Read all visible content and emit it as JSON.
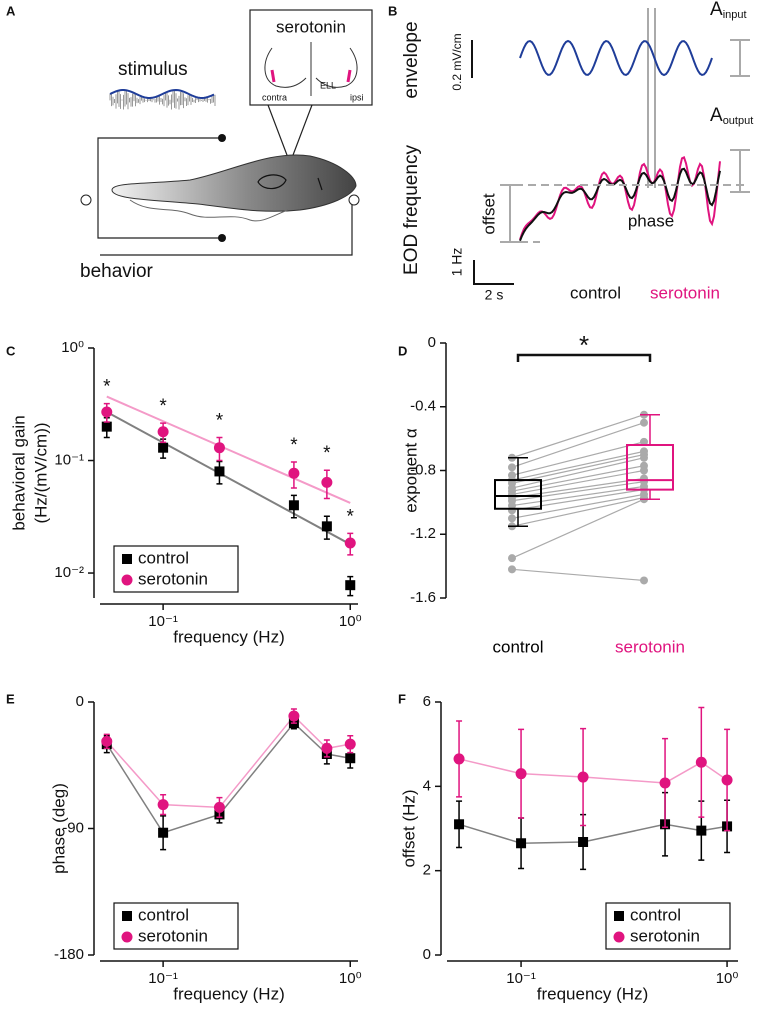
{
  "diagram_a": {
    "label": "A",
    "inset_title": "serotonin",
    "inset_labels": [
      "contra",
      "ELL",
      "ipsi"
    ],
    "stimulus": "stimulus",
    "behavior": "behavior"
  },
  "diagram_b": {
    "label": "B",
    "envelope": "envelope",
    "scale_envelope": "0.2 mV/cm",
    "a_input": {
      "base": "A",
      "sub": "input"
    },
    "a_output": {
      "base": "A",
      "sub": "output"
    },
    "eod": "EOD frequency",
    "offset": "offset",
    "phase": "phase",
    "scale_freq": "1 Hz",
    "scale_time": "2 s",
    "legend": [
      "control",
      "serotonin"
    ]
  },
  "chart_data": [
    {
      "panel": "C",
      "type": "scatter",
      "xscale": "log",
      "yscale": "log",
      "xlabel": "frequency (Hz)",
      "ylabel": [
        "behavioral gain",
        "(Hz/(mV/cm))"
      ],
      "xlim": [
        0.046,
        1.1
      ],
      "ylim": [
        0.006,
        1
      ],
      "xticks": [
        {
          "value": 0.1,
          "label": "10⁻¹"
        },
        {
          "value": 1,
          "label": "10⁰"
        }
      ],
      "yticks": [
        {
          "value": 0.01,
          "label": "10⁻²"
        },
        {
          "value": 0.1,
          "label": "10⁻¹"
        },
        {
          "value": 1,
          "label": "10⁰"
        }
      ],
      "x": [
        0.05,
        0.1,
        0.2,
        0.5,
        0.75,
        1
      ],
      "series": [
        {
          "name": "control",
          "color": "#000000",
          "marker": "square",
          "values": [
            0.2,
            0.13,
            0.08,
            0.04,
            0.026,
            0.0078
          ],
          "errors": [
            0.04,
            0.025,
            0.018,
            0.009,
            0.006,
            0.0015
          ]
        },
        {
          "name": "serotonin",
          "color": "#e0147f",
          "marker": "circle",
          "values": [
            0.27,
            0.18,
            0.13,
            0.077,
            0.064,
            0.0185
          ],
          "errors": [
            0.05,
            0.035,
            0.03,
            0.02,
            0.018,
            0.004
          ]
        }
      ],
      "fits": [
        {
          "color": "#808080",
          "x": [
            0.05,
            1
          ],
          "values": [
            0.27,
            0.018
          ]
        },
        {
          "color": "#f49ac8",
          "x": [
            0.05,
            1
          ],
          "values": [
            0.37,
            0.042
          ]
        }
      ],
      "annotations": [
        "*",
        "*",
        "*",
        "*",
        "*",
        "*"
      ],
      "legend": "lower left"
    },
    {
      "panel": "D",
      "type": "box",
      "ylabel": "exponent α",
      "ylim": [
        -1.6,
        0
      ],
      "yticks": [
        -1.6,
        -1.2,
        -0.8,
        -0.4,
        0
      ],
      "significance": "*",
      "boxes": [
        {
          "label": "control",
          "color": "#000000",
          "whislo": -1.15,
          "q1": -1.04,
          "median": -0.96,
          "q3": -0.86,
          "whishi": -0.72,
          "points": [
            -0.72,
            -0.78,
            -0.83,
            -0.86,
            -0.88,
            -0.91,
            -0.93,
            -0.95,
            -0.97,
            -0.99,
            -1.02,
            -1.05,
            -1.1,
            -1.15,
            -1.35,
            -1.42
          ]
        },
        {
          "label": "serotonin",
          "color": "#e0147f",
          "whislo": -0.98,
          "q1": -0.92,
          "median": -0.86,
          "q3": -0.64,
          "whishi": -0.45,
          "points": [
            -0.45,
            -0.5,
            -0.62,
            -0.68,
            -0.7,
            -0.72,
            -0.77,
            -0.8,
            -0.85,
            -0.87,
            -0.9,
            -0.92,
            -0.95,
            -0.97,
            -0.98,
            -1.49
          ]
        }
      ]
    },
    {
      "panel": "E",
      "type": "scatter",
      "xscale": "log",
      "yscale": "linear",
      "xlabel": "frequency (Hz)",
      "ylabel": [
        "phase (deg)"
      ],
      "xlim": [
        0.046,
        1.1
      ],
      "ylim": [
        -180,
        0
      ],
      "xticks": [
        {
          "value": 0.1,
          "label": "10⁻¹"
        },
        {
          "value": 1,
          "label": "10⁰"
        }
      ],
      "yticks": [
        -180,
        -90,
        0
      ],
      "x": [
        0.05,
        0.1,
        0.2,
        0.5,
        0.75,
        1
      ],
      "series": [
        {
          "name": "control",
          "color": "#000000",
          "line_color": "#808080",
          "marker": "square",
          "values": [
            -30,
            -93,
            -80,
            -15,
            -37,
            -40
          ],
          "errors": [
            6,
            12,
            6,
            4,
            7,
            7
          ]
        },
        {
          "name": "serotonin",
          "color": "#e0147f",
          "line_color": "#f49ac8",
          "marker": "circle",
          "values": [
            -28,
            -73,
            -75,
            -10,
            -33,
            -30
          ],
          "errors": [
            5,
            7,
            7,
            5,
            6,
            6
          ]
        }
      ],
      "legend": "lower left"
    },
    {
      "panel": "F",
      "type": "scatter",
      "xscale": "log",
      "yscale": "linear",
      "xlabel": "frequency (Hz)",
      "ylabel": [
        "offset (Hz)"
      ],
      "xlim": [
        0.0437,
        1.13
      ],
      "ylim": [
        0,
        6
      ],
      "xticks": [
        {
          "value": 0.1,
          "label": "10⁻¹"
        },
        {
          "value": 1,
          "label": "10⁰"
        }
      ],
      "yticks": [
        0,
        2,
        4,
        6
      ],
      "x": [
        0.05,
        0.1,
        0.2,
        0.5,
        0.75,
        1
      ],
      "series": [
        {
          "name": "control",
          "color": "#000000",
          "line_color": "#808080",
          "marker": "square",
          "values": [
            3.1,
            2.65,
            2.68,
            3.1,
            2.95,
            3.05
          ],
          "errors": [
            0.55,
            0.6,
            0.65,
            0.75,
            0.7,
            0.62
          ]
        },
        {
          "name": "serotonin",
          "color": "#e0147f",
          "line_color": "#f49ac8",
          "marker": "circle",
          "values": [
            4.65,
            4.3,
            4.22,
            4.08,
            4.57,
            4.15
          ],
          "errors": [
            0.9,
            1.05,
            1.15,
            1.05,
            1.3,
            1.2
          ]
        }
      ],
      "legend": "lower right"
    }
  ]
}
